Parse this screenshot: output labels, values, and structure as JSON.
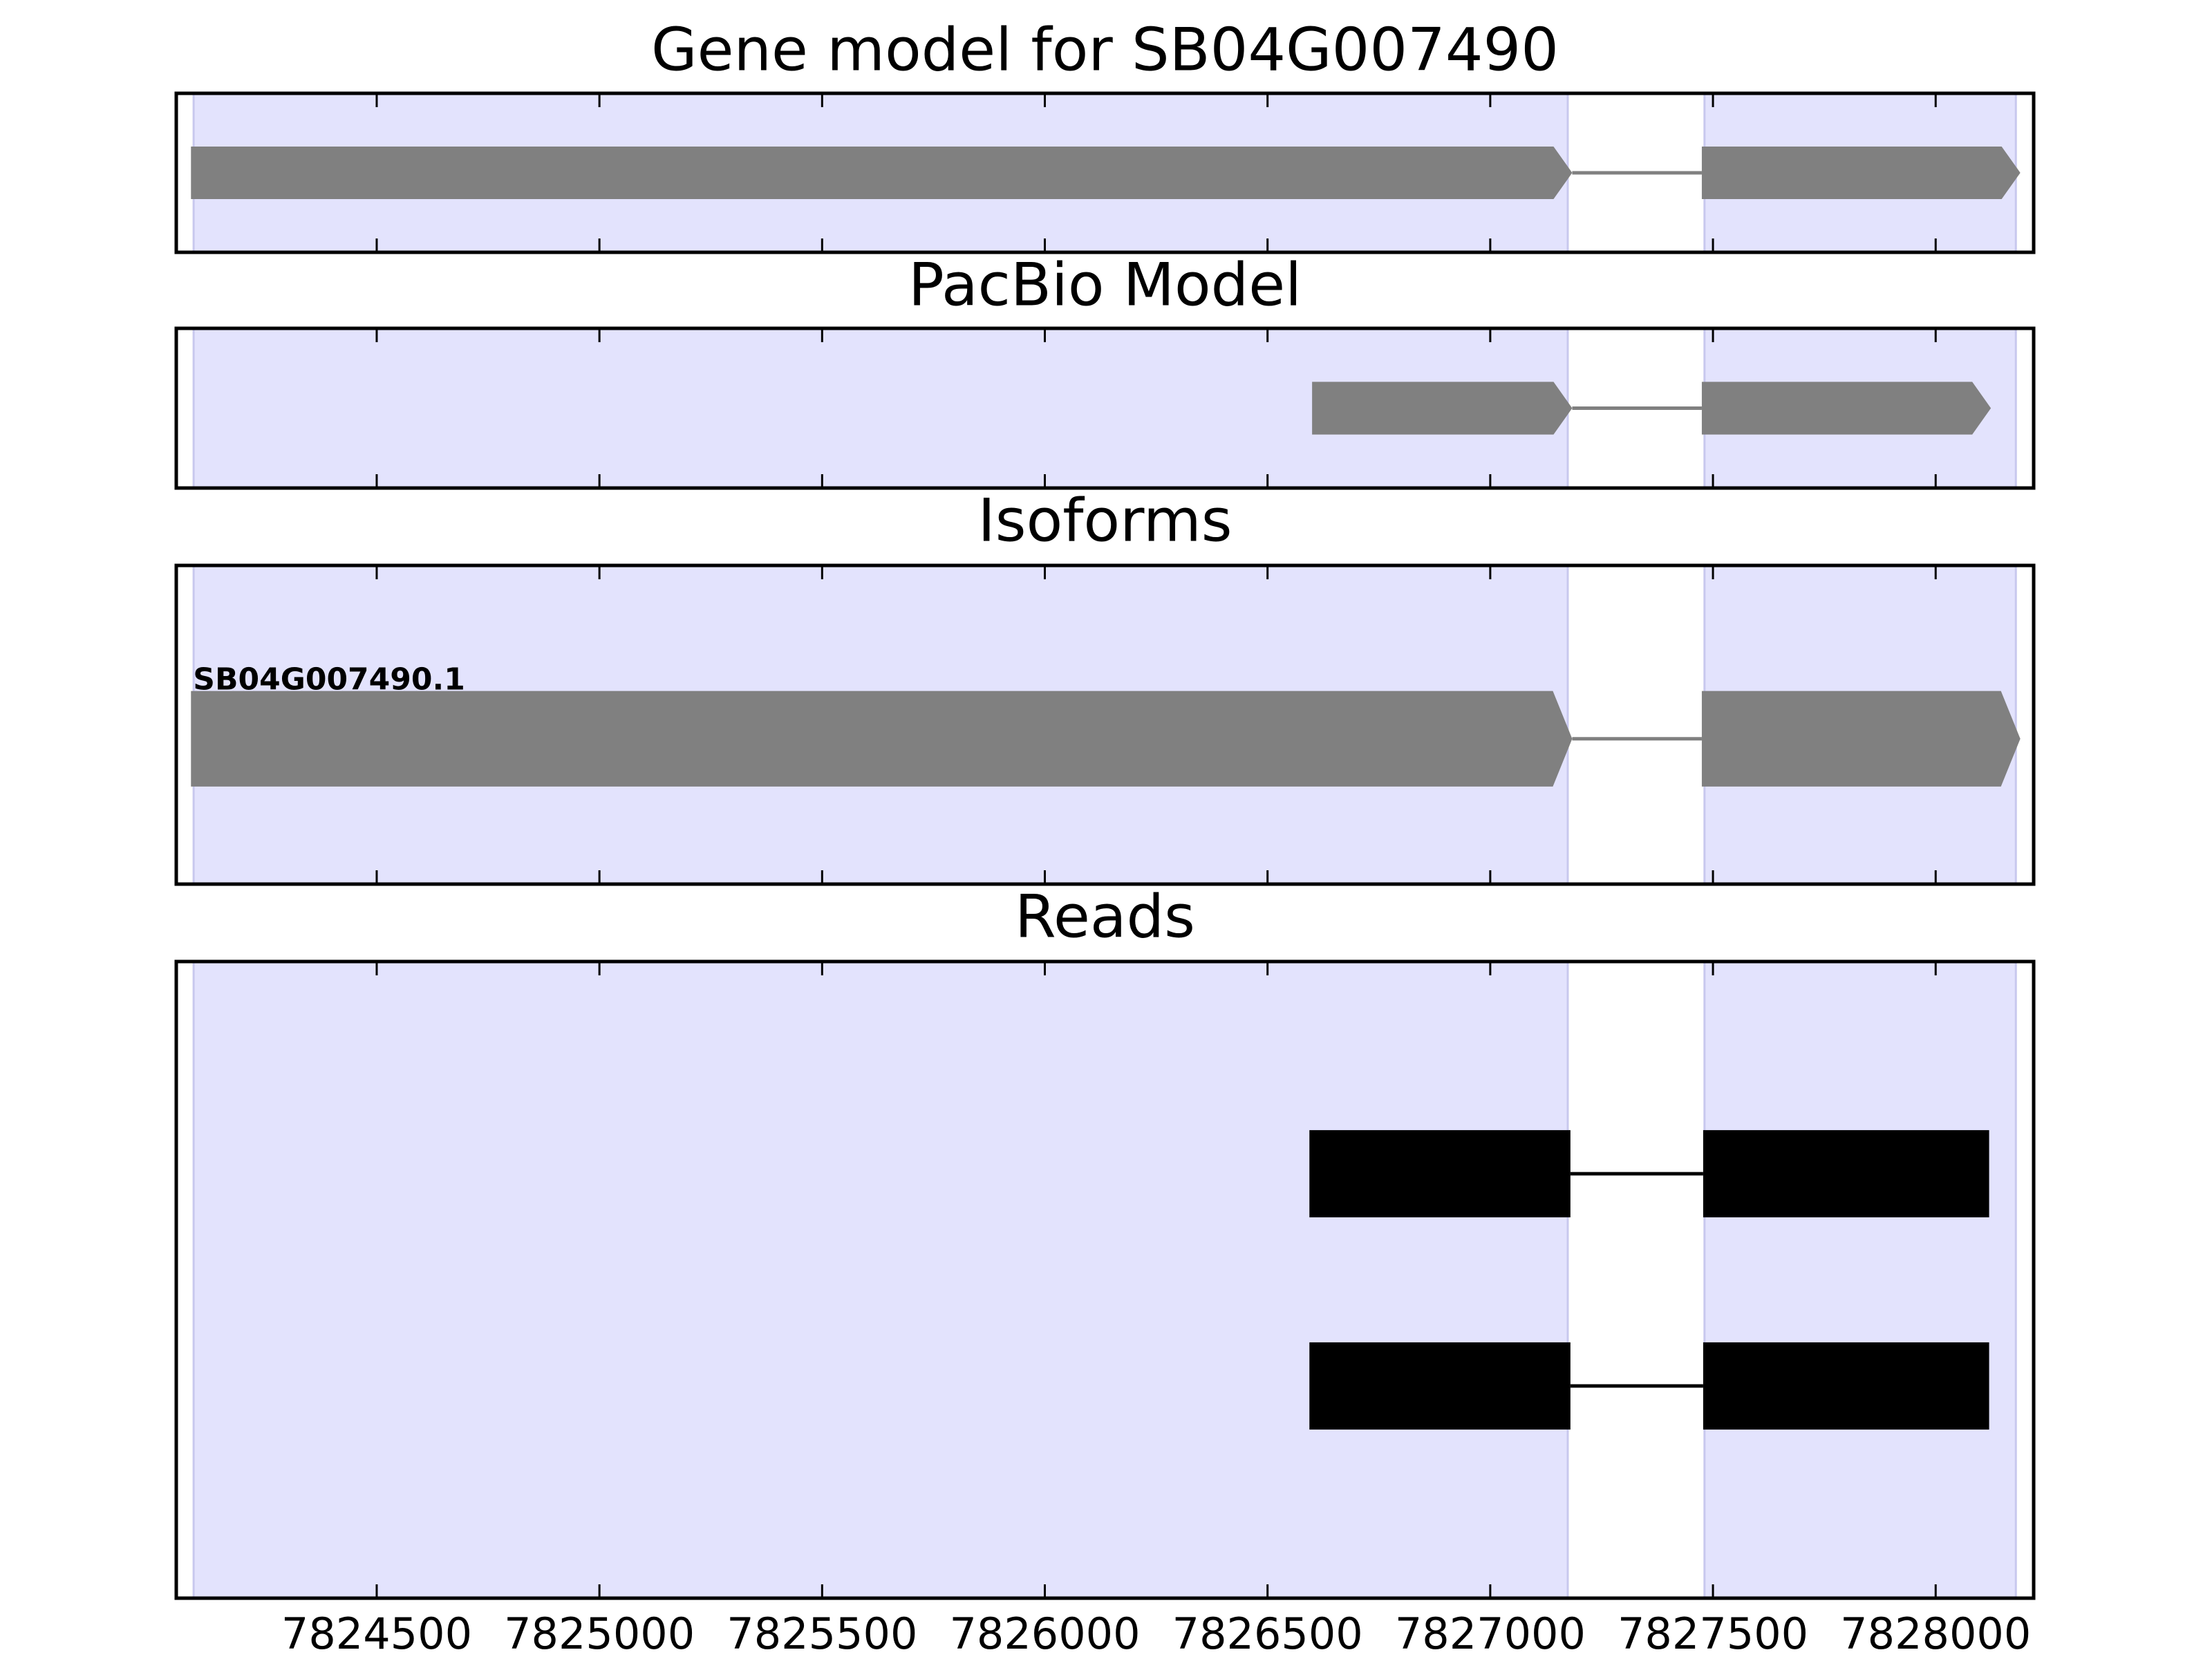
{
  "chart_data": {
    "type": "gene_tracks",
    "xlim": [
      7824050,
      7828220
    ],
    "xticks": [
      7824500,
      7825000,
      7825500,
      7826000,
      7826500,
      7827000,
      7827500,
      7828000
    ],
    "regions": [
      [
        7824089,
        7827174
      ],
      [
        7827481,
        7828180
      ]
    ],
    "region_color": "#e3e3fd",
    "panels": [
      {
        "title": "Gene model for SB04G007490",
        "shape": "arrow",
        "color": "#808080",
        "transcripts": [
          {
            "exons": [
              [
                7824083,
                7827184
              ],
              [
                7827475,
                7828190
              ]
            ]
          }
        ]
      },
      {
        "title": "PacBio Model",
        "shape": "arrow",
        "color": "#808080",
        "transcripts": [
          {
            "exons": [
              [
                7826600,
                7827184
              ],
              [
                7827475,
                7828124
              ]
            ]
          }
        ]
      },
      {
        "title": "Isoforms",
        "shape": "arrow",
        "color": "#808080",
        "transcripts": [
          {
            "label": "SB04G007490.1",
            "exons": [
              [
                7824083,
                7827184
              ],
              [
                7827475,
                7828190
              ]
            ]
          }
        ]
      },
      {
        "title": "Reads",
        "shape": "box",
        "color": "#000000",
        "transcripts": [
          {
            "exons": [
              [
                7826594,
                7827180
              ],
              [
                7827478,
                7828120
              ]
            ]
          },
          {
            "exons": [
              [
                7826594,
                7827180
              ],
              [
                7827478,
                7828120
              ]
            ]
          }
        ]
      }
    ]
  }
}
